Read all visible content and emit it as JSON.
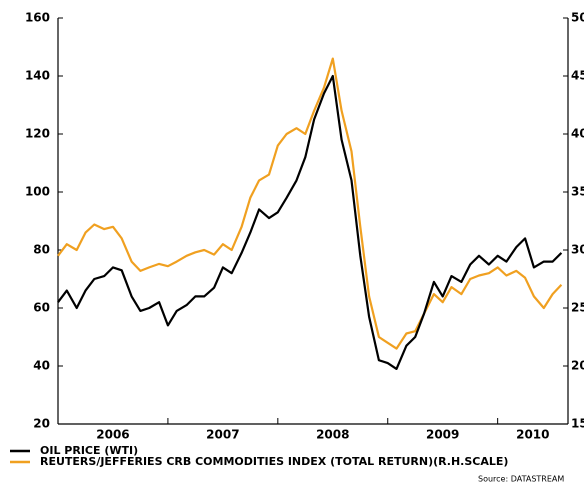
{
  "chart_data": {
    "type": "line",
    "x": [
      2006.0,
      2006.08,
      2006.17,
      2006.25,
      2006.33,
      2006.42,
      2006.5,
      2006.58,
      2006.67,
      2006.75,
      2006.83,
      2006.92,
      2007.0,
      2007.08,
      2007.17,
      2007.25,
      2007.33,
      2007.42,
      2007.5,
      2007.58,
      2007.67,
      2007.75,
      2007.83,
      2007.92,
      2008.0,
      2008.08,
      2008.17,
      2008.25,
      2008.33,
      2008.42,
      2008.5,
      2008.58,
      2008.67,
      2008.75,
      2008.83,
      2008.92,
      2009.0,
      2009.08,
      2009.17,
      2009.25,
      2009.33,
      2009.42,
      2009.5,
      2009.58,
      2009.67,
      2009.75,
      2009.83,
      2009.92,
      2010.0,
      2010.08,
      2010.17,
      2010.25,
      2010.33,
      2010.42,
      2010.5,
      2010.58
    ],
    "series": [
      {
        "name": "OIL PRICE (WTI)",
        "color": "#000000",
        "values": [
          62,
          66,
          60,
          66,
          70,
          71,
          74,
          73,
          64,
          59,
          60,
          62,
          54,
          59,
          61,
          64,
          64,
          67,
          74,
          72,
          79,
          86,
          94,
          91,
          93,
          98,
          104,
          112,
          125,
          134,
          140,
          118,
          104,
          78,
          57,
          42,
          41,
          39,
          47,
          50,
          58,
          69,
          64,
          71,
          69,
          75,
          78,
          75,
          78,
          76,
          81,
          84,
          74,
          76,
          76,
          79
        ]
      },
      {
        "name": "REUTERS/JEFFERIES CRB COMMODITIES INDEX (TOTAL RETURN)(R.H.SCALE)",
        "color": "#f0a020",
        "axis": "y2",
        "values": [
          295,
          305,
          300,
          315,
          322,
          318,
          320,
          310,
          290,
          282,
          285,
          288,
          286,
          290,
          295,
          298,
          300,
          296,
          305,
          300,
          320,
          345,
          360,
          365,
          390,
          400,
          405,
          400,
          420,
          440,
          465,
          420,
          385,
          320,
          260,
          225,
          220,
          215,
          228,
          230,
          245,
          262,
          255,
          268,
          262,
          275,
          278,
          280,
          285,
          278,
          282,
          276,
          260,
          250,
          262,
          270
        ]
      }
    ],
    "xlim": [
      2006,
      2010.64
    ],
    "xticks": [
      2006,
      2007,
      2008,
      2009,
      2010
    ],
    "ylim": [
      20,
      160
    ],
    "yticks": [
      20,
      40,
      60,
      80,
      100,
      120,
      140,
      160
    ],
    "y2lim": [
      150,
      500
    ],
    "y2ticks": [
      150,
      200,
      250,
      300,
      350,
      400,
      450,
      500
    ],
    "source": "Source: DATASTREAM"
  }
}
